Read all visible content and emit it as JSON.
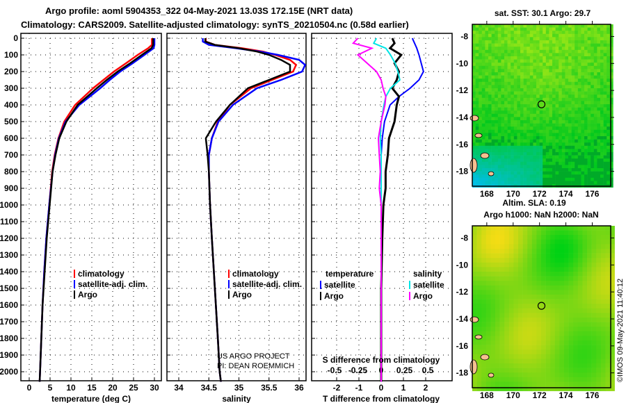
{
  "title": {
    "line1": "Argo profile: aoml 5904353_322 04-May-2021 13.03S 172.15E (NRT data)",
    "line2": "Climatology: CARS2009. Satellite-adjusted climatology: synTS_20210504.nc (0.58d earlier)"
  },
  "credits": {
    "project": "US ARGO PROJECT",
    "pi": "PI: DEAN ROEMMICH",
    "copyright": "©IMOS 09-May-2021 11:40:12"
  },
  "colors": {
    "climatology": "#ff0000",
    "satellite": "#0000ff",
    "argo": "#000000",
    "sal_satellite": "#00e5e5",
    "sal_argo": "#ff00ff"
  },
  "chart_data": [
    {
      "type": "line",
      "id": "temperature",
      "xlabel": "temperature (deg C)",
      "xlim": [
        -2,
        31
      ],
      "ylim": [
        0,
        2070
      ],
      "yticks": [
        0,
        100,
        200,
        300,
        400,
        500,
        600,
        700,
        800,
        900,
        1000,
        1100,
        1200,
        1300,
        1400,
        1500,
        1600,
        1700,
        1800,
        1900,
        2000
      ],
      "xticks": [
        0,
        5,
        10,
        15,
        20,
        25,
        30
      ],
      "pressure": [
        0,
        40,
        60,
        100,
        150,
        200,
        250,
        300,
        400,
        500,
        600,
        700,
        800,
        1000,
        1200,
        1400,
        1600,
        1800,
        2000,
        2060
      ],
      "legend": [
        "climatology",
        "satellite-adj. clim.",
        "Argo"
      ],
      "series": [
        {
          "name": "climatology",
          "values": [
            29.4,
            29.4,
            28.5,
            26.0,
            23.2,
            20.3,
            17.8,
            15.3,
            11.0,
            8.4,
            7.0,
            6.1,
            5.5,
            4.8,
            4.1,
            3.6,
            3.2,
            2.9,
            2.6,
            2.5
          ]
        },
        {
          "name": "satellite-adj. clim.",
          "values": [
            30.0,
            30.0,
            29.8,
            27.6,
            24.8,
            21.8,
            19.3,
            17.0,
            12.0,
            8.7,
            7.1,
            6.2,
            5.6,
            4.8,
            4.1,
            3.6,
            3.2,
            2.9,
            2.6,
            2.5
          ]
        },
        {
          "name": "Argo",
          "values": [
            29.7,
            29.7,
            29.3,
            27.0,
            24.2,
            21.2,
            18.6,
            16.2,
            11.6,
            8.9,
            7.2,
            6.3,
            5.6,
            4.9,
            4.2,
            3.7,
            3.2,
            2.9,
            2.6,
            2.5
          ]
        }
      ]
    },
    {
      "type": "line",
      "id": "salinity",
      "xlabel": "salinity",
      "xlim": [
        33.8,
        36.1
      ],
      "ylim": [
        0,
        2070
      ],
      "xticks": [
        34,
        34.5,
        35,
        35.5,
        36
      ],
      "pressure": [
        0,
        20,
        40,
        60,
        80,
        100,
        130,
        160,
        200,
        250,
        300,
        400,
        500,
        600,
        700,
        800,
        1000,
        1200,
        1500,
        1800,
        2000,
        2060
      ],
      "legend": [
        "climatology",
        "satellite-adj. clim.",
        "Argo"
      ],
      "series": [
        {
          "name": "climatology",
          "values": [
            34.45,
            34.45,
            34.6,
            35.05,
            35.4,
            35.6,
            35.85,
            35.95,
            35.9,
            35.55,
            35.2,
            34.85,
            34.65,
            34.55,
            34.5,
            34.5,
            34.52,
            34.55,
            34.6,
            34.65,
            34.68,
            34.7
          ]
        },
        {
          "name": "satellite-adj. clim.",
          "values": [
            34.4,
            34.4,
            34.5,
            34.95,
            35.35,
            35.65,
            36.0,
            36.1,
            36.05,
            35.7,
            35.3,
            34.9,
            34.66,
            34.55,
            34.5,
            34.5,
            34.52,
            34.55,
            34.6,
            34.65,
            34.68,
            34.7
          ]
        },
        {
          "name": "Argo",
          "values": [
            34.44,
            34.44,
            34.6,
            35.0,
            35.3,
            35.5,
            35.7,
            35.85,
            35.85,
            35.5,
            35.15,
            34.85,
            34.62,
            34.45,
            34.48,
            34.5,
            34.52,
            34.55,
            34.6,
            34.65,
            34.68,
            34.7
          ]
        }
      ]
    },
    {
      "type": "line",
      "id": "difference",
      "xlabel": "T difference from climatology",
      "x2label": "S difference from climatology",
      "xlim": [
        -2.6,
        2.6
      ],
      "x2lim": [
        -0.6,
        0.6
      ],
      "ylim": [
        0,
        2070
      ],
      "xticks": [
        -2,
        -1,
        0,
        1,
        2
      ],
      "x2ticks": [
        "-0.5",
        "-0.25",
        "0",
        "0.25",
        "0.5"
      ],
      "pressure": [
        0,
        30,
        60,
        100,
        150,
        200,
        250,
        300,
        350,
        400,
        500,
        600,
        700,
        800,
        900,
        1000,
        1200,
        1500,
        2000,
        2060
      ],
      "legend": {
        "temperature_heading": "temperature",
        "salinity_heading": "salinity",
        "items": [
          "satellite",
          "Argo",
          "satellite",
          "Argo"
        ]
      },
      "series": [
        {
          "name": "temperature satellite",
          "values": [
            1.4,
            1.5,
            1.6,
            1.7,
            1.8,
            1.9,
            1.7,
            1.3,
            0.8,
            0.4,
            0.15,
            0.05,
            0.0,
            0.0,
            0.0,
            0.0,
            0.0,
            0.0,
            0.0,
            0.0
          ]
        },
        {
          "name": "temperature Argo",
          "values": [
            0.5,
            0.6,
            0.4,
            0.9,
            0.6,
            0.8,
            0.7,
            0.5,
            0.8,
            0.7,
            0.6,
            0.35,
            0.3,
            0.2,
            0.2,
            0.1,
            0.05,
            0.0,
            0.0,
            0.0
          ]
        },
        {
          "name": "salinity satellite",
          "values": [
            -0.05,
            -0.08,
            0.05,
            0.1,
            0.15,
            0.18,
            0.2,
            0.1,
            0.05,
            0.03,
            0.0,
            -0.01,
            0.0,
            0.0,
            0.0,
            0.0,
            0.0,
            0.0,
            0.0,
            0.0
          ]
        },
        {
          "name": "salinity Argo",
          "values": [
            -0.25,
            -0.3,
            -0.1,
            -0.25,
            -0.15,
            -0.05,
            0.0,
            0.02,
            0.05,
            0.04,
            0.0,
            -0.03,
            -0.02,
            -0.01,
            -0.02,
            0.0,
            0.0,
            0.0,
            0.0,
            0.0
          ]
        }
      ]
    },
    {
      "type": "heatmap",
      "id": "sst_map",
      "title": "sat. SST: 30.1 Argo: 29.7",
      "xticks": [
        168,
        170,
        172,
        174,
        176
      ],
      "yticks": [
        -8,
        -10,
        -12,
        -14,
        -16,
        -18
      ],
      "xlim": [
        166.9,
        177.4
      ],
      "ylim": [
        -19.1,
        -7.1
      ],
      "float_position": [
        172.15,
        -13.03
      ]
    },
    {
      "type": "heatmap",
      "id": "sla_map",
      "title": "Altim. SLA: 0.19",
      "subtitle": "Argo h1000: NaN h2000: NaN",
      "xticks": [
        168,
        170,
        172,
        174,
        176
      ],
      "yticks": [
        -8,
        -10,
        -12,
        -14,
        -16,
        -18
      ],
      "xlim": [
        166.9,
        177.4
      ],
      "ylim": [
        -19.1,
        -7.1
      ],
      "float_position": [
        172.15,
        -13.03
      ]
    }
  ]
}
